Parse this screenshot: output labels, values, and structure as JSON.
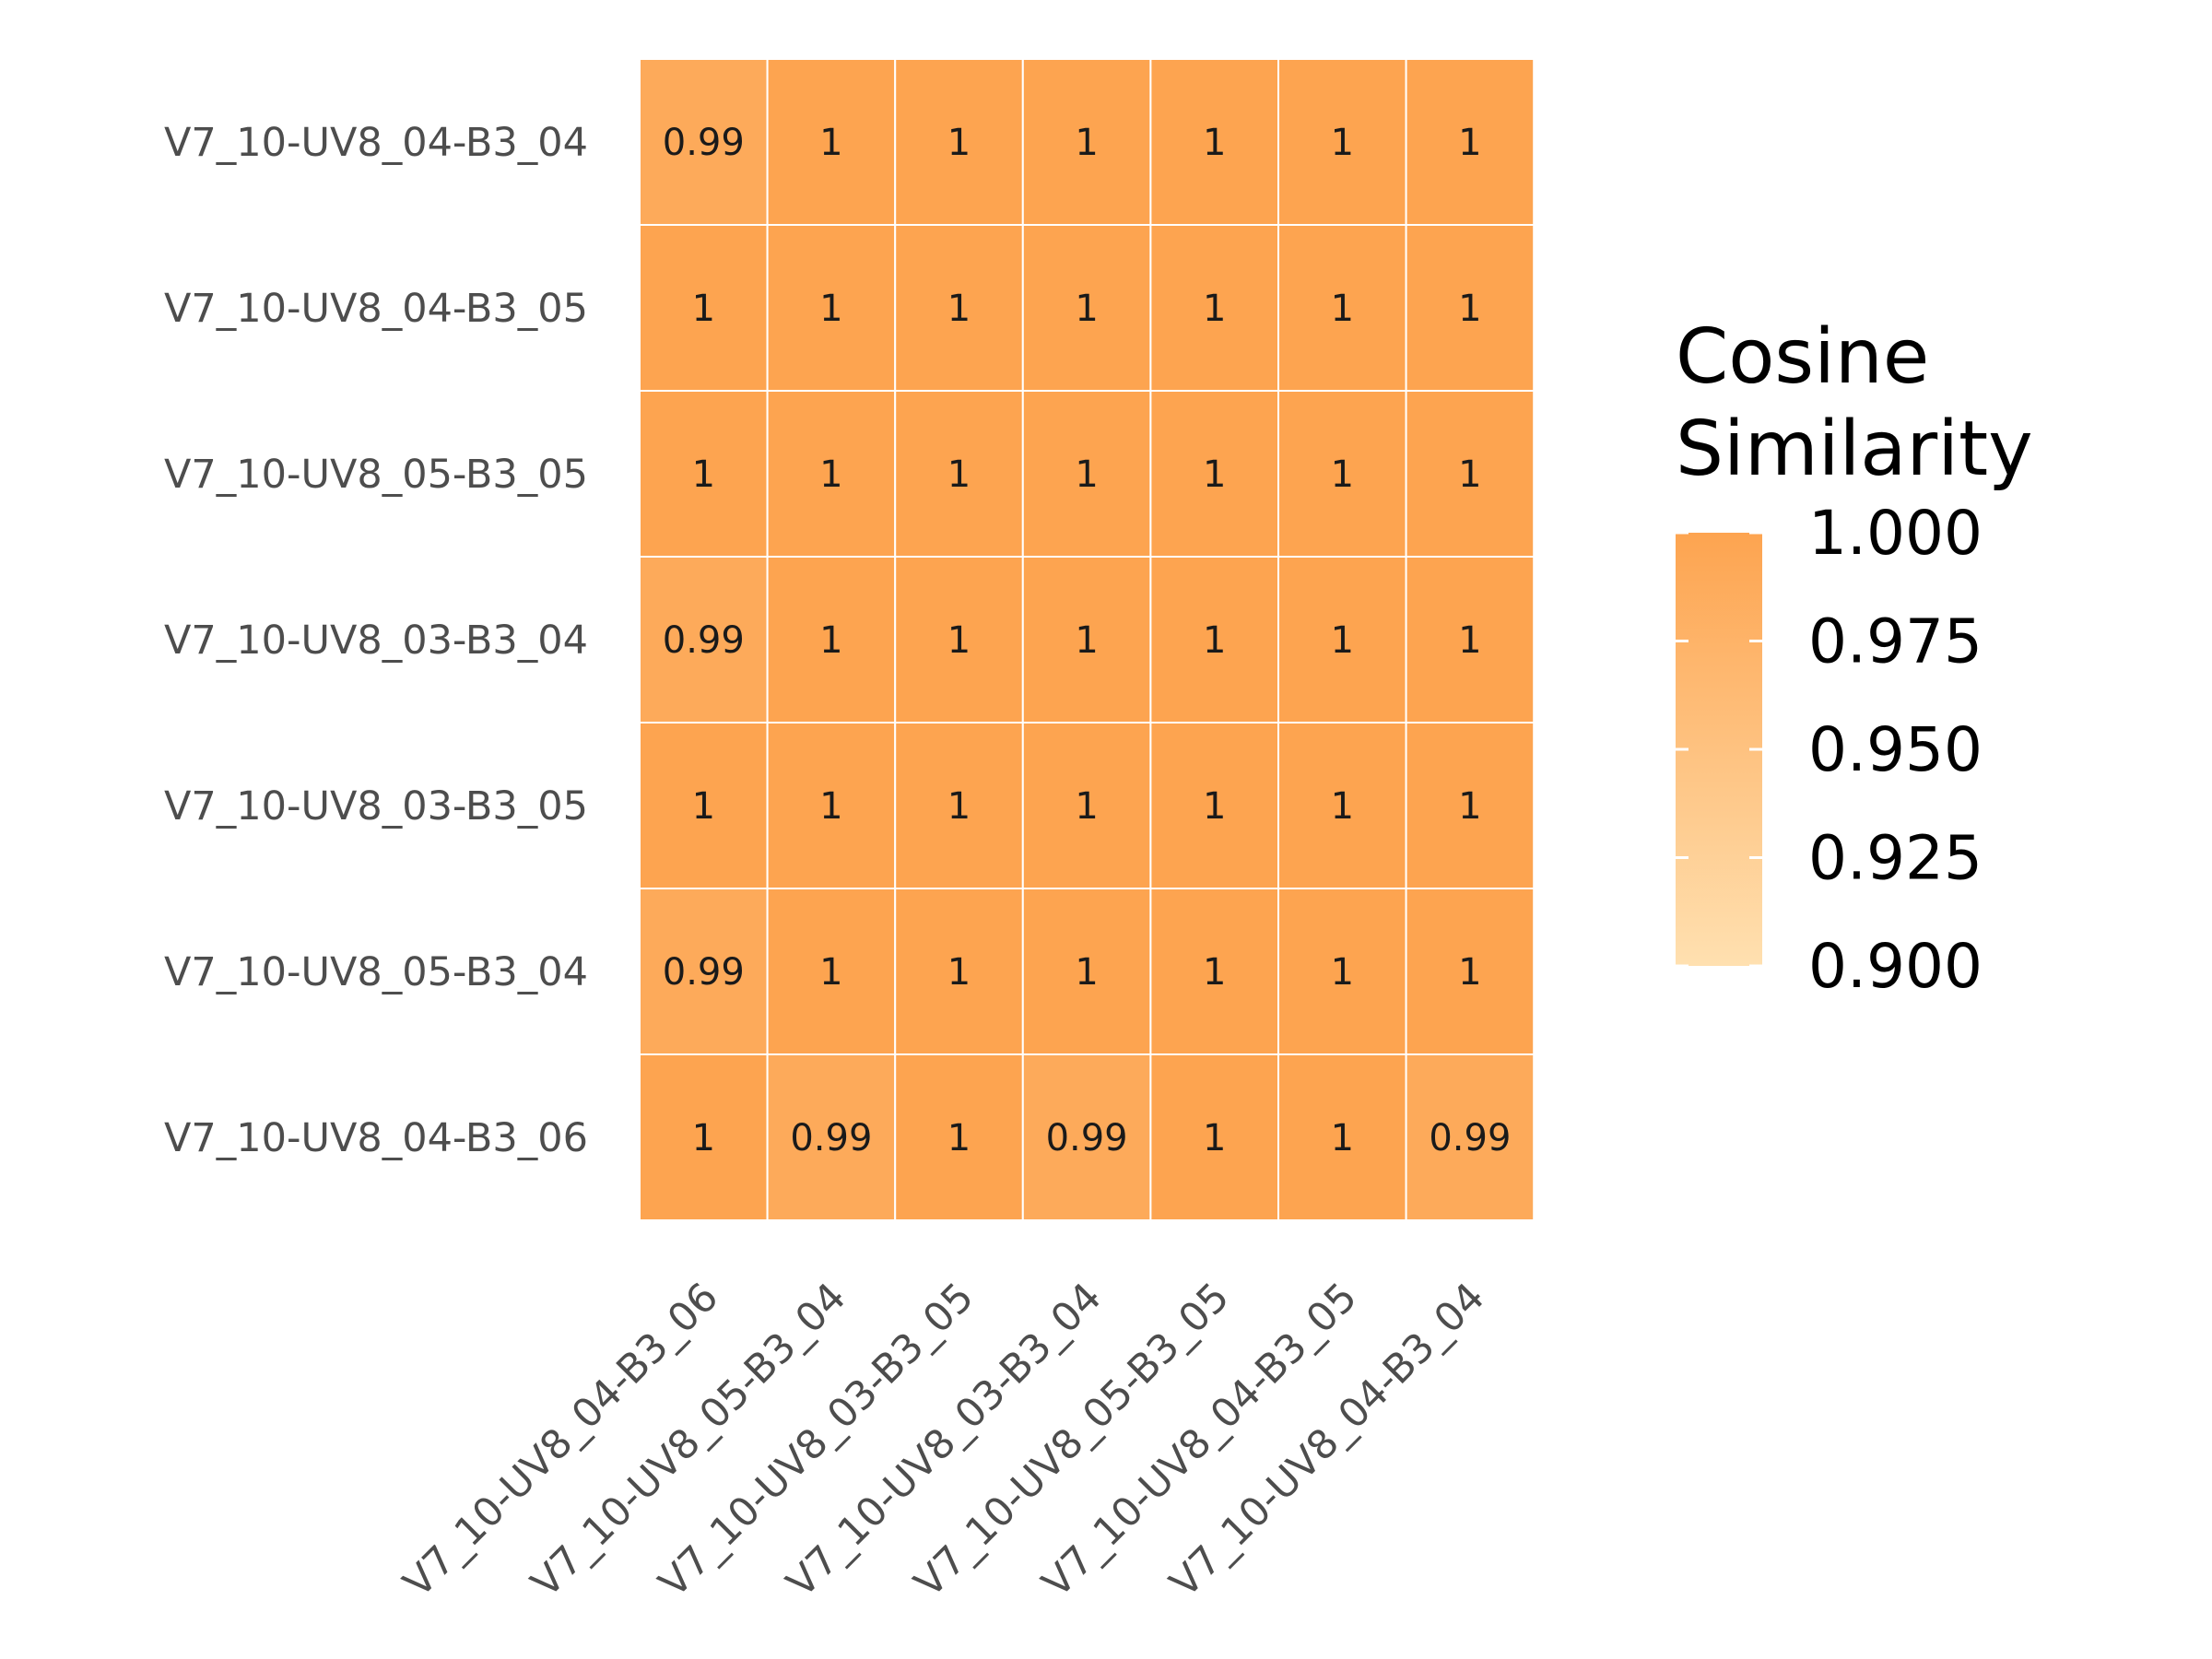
{
  "chart_data": {
    "type": "heatmap",
    "title": "",
    "xlabel": "",
    "ylabel": "",
    "rows": [
      "V7_10-UV8_04-B3_04",
      "V7_10-UV8_04-B3_05",
      "V7_10-UV8_05-B3_05",
      "V7_10-UV8_03-B3_04",
      "V7_10-UV8_03-B3_05",
      "V7_10-UV8_05-B3_04",
      "V7_10-UV8_04-B3_06"
    ],
    "columns": [
      "V7_10-UV8_04-B3_06",
      "V7_10-UV8_05-B3_04",
      "V7_10-UV8_03-B3_05",
      "V7_10-UV8_03-B3_04",
      "V7_10-UV8_05-B3_05",
      "V7_10-UV8_04-B3_05",
      "V7_10-UV8_04-B3_04"
    ],
    "values": [
      [
        0.99,
        1,
        1,
        1,
        1,
        1,
        1
      ],
      [
        1,
        1,
        1,
        1,
        1,
        1,
        1
      ],
      [
        1,
        1,
        1,
        1,
        1,
        1,
        1
      ],
      [
        0.99,
        1,
        1,
        1,
        1,
        1,
        1
      ],
      [
        1,
        1,
        1,
        1,
        1,
        1,
        1
      ],
      [
        0.99,
        1,
        1,
        1,
        1,
        1,
        1
      ],
      [
        1,
        0.99,
        1,
        0.99,
        1,
        1,
        0.99
      ]
    ],
    "cell_labels": [
      [
        "0.99",
        "1",
        "1",
        "1",
        "1",
        "1",
        "1"
      ],
      [
        "1",
        "1",
        "1",
        "1",
        "1",
        "1",
        "1"
      ],
      [
        "1",
        "1",
        "1",
        "1",
        "1",
        "1",
        "1"
      ],
      [
        "0.99",
        "1",
        "1",
        "1",
        "1",
        "1",
        "1"
      ],
      [
        "1",
        "1",
        "1",
        "1",
        "1",
        "1",
        "1"
      ],
      [
        "0.99",
        "1",
        "1",
        "1",
        "1",
        "1",
        "1"
      ],
      [
        "1",
        "0.99",
        "1",
        "0.99",
        "1",
        "1",
        "0.99"
      ]
    ],
    "legend": {
      "title_lines": [
        "Cosine",
        "Similarity"
      ],
      "placement": "right",
      "range": [
        0.9,
        1.0
      ],
      "ticks": [
        1.0,
        0.975,
        0.95,
        0.925,
        0.9
      ],
      "tick_labels": [
        "1.000",
        "0.975",
        "0.950",
        "0.925",
        "0.900"
      ],
      "color_low": "#ffe0b0",
      "color_high": "#fda450"
    },
    "grid": false
  }
}
